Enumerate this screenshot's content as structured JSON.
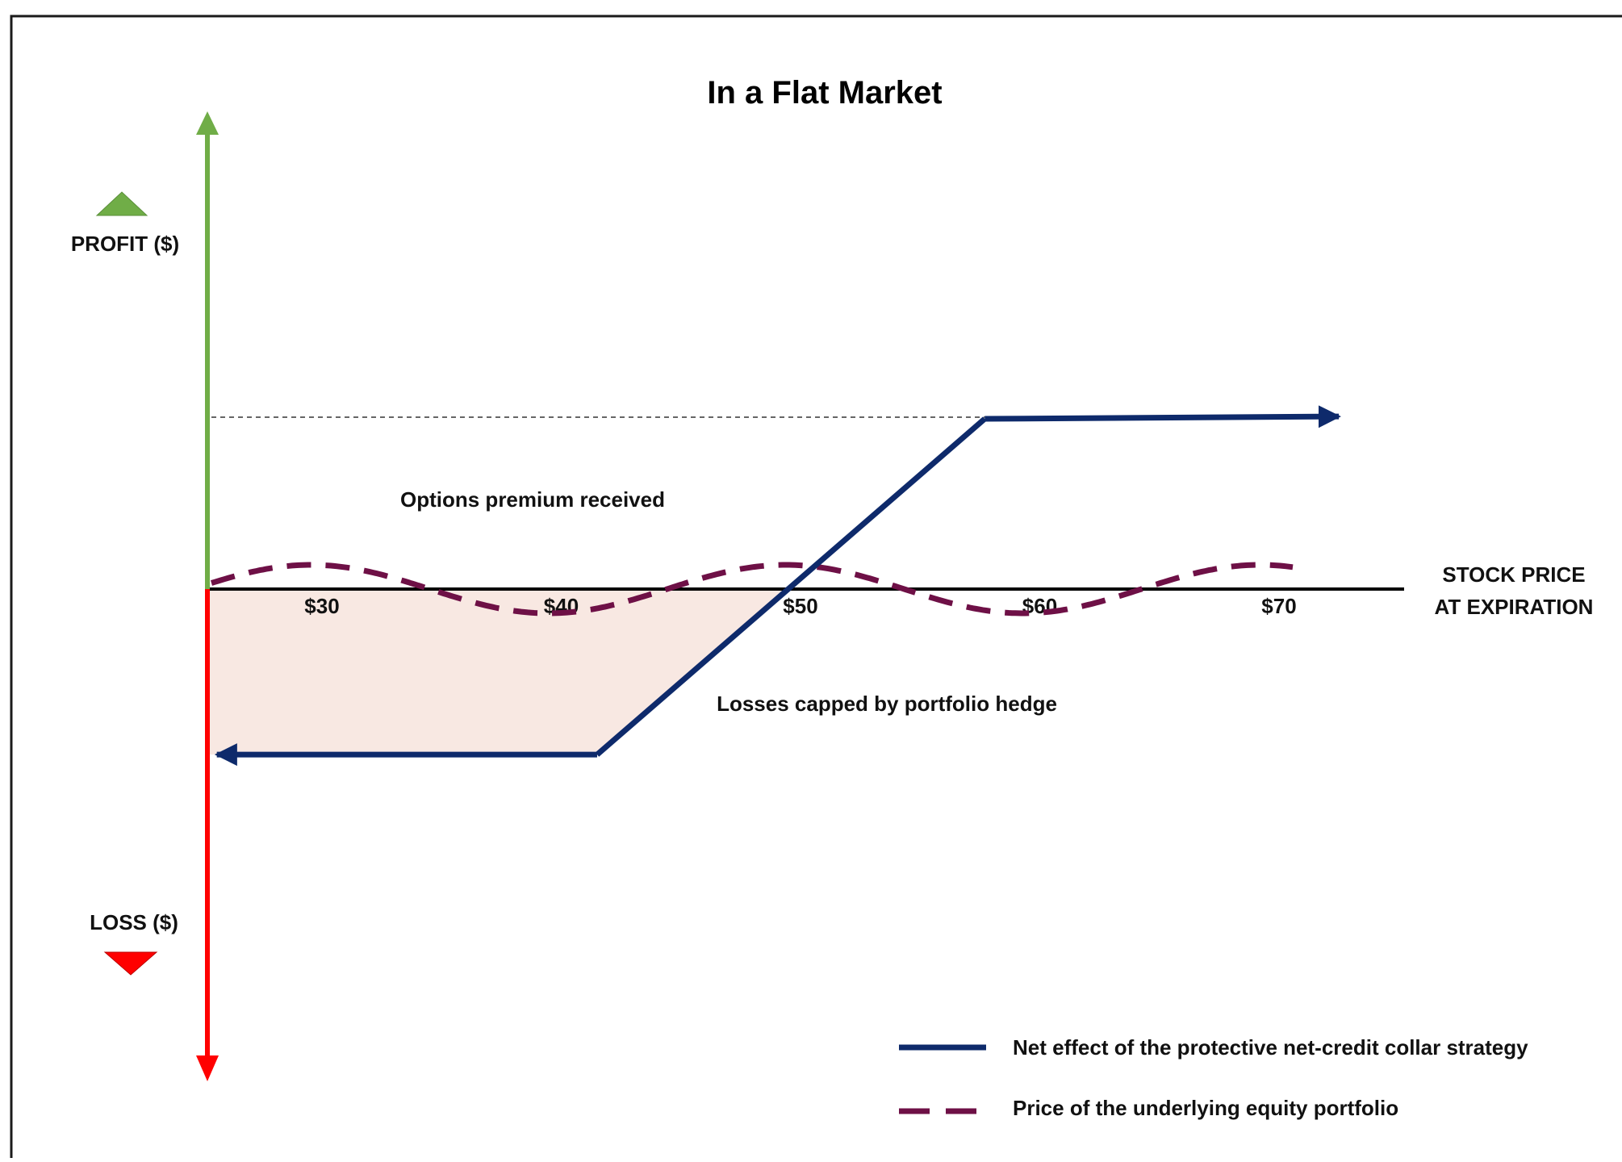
{
  "chart_data": {
    "type": "line",
    "title": "In a Flat Market",
    "ylabel_top": "PROFIT ($)",
    "ylabel_bottom": "LOSS ($)",
    "xlabel_line1": "STOCK PRICE",
    "xlabel_line2": "AT EXPIRATION",
    "x_ticks": [
      "$30",
      "$40",
      "$50",
      "$60",
      "$70"
    ],
    "x_tick_values": [
      30,
      40,
      50,
      60,
      70
    ],
    "annotations": {
      "premium": "Options premium received",
      "losses": "Losses capped by portfolio hedge"
    },
    "series": [
      {
        "name": "Net effect of the protective net-credit collar strategy",
        "color": "#0e2a6b",
        "style": "solid",
        "points": [
          [
            25.2,
            -7
          ],
          [
            41.5,
            -7
          ],
          [
            57.7,
            7.2
          ],
          [
            72.5,
            7.3
          ]
        ]
      },
      {
        "name": "Price of the underlying equity portfolio",
        "color": "#6e1046",
        "style": "dashed",
        "shape": "wave oscillating around zero"
      }
    ],
    "colors": {
      "profit_axis": "#70ad47",
      "loss_axis": "#ff0000",
      "loss_region": "#f8e8e2"
    }
  },
  "legend": {
    "items": [
      "Net effect of the protective net-credit collar strategy",
      "Price of the underlying equity portfolio"
    ]
  }
}
